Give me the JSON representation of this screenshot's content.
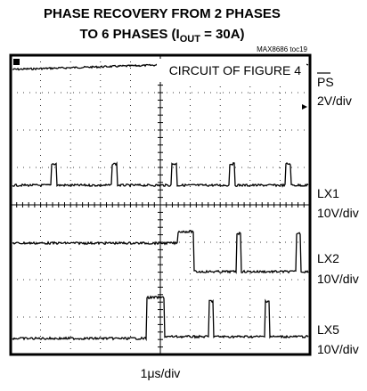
{
  "title": {
    "line1": "PHASE RECOVERY FROM 2 PHASES",
    "line2_prefix": "TO 6 PHASES (I",
    "line2_sub": "OUT",
    "line2_suffix": " = 30A)"
  },
  "tag": "MAX8686 toc19",
  "annotation": "CIRCUIT OF FIGURE 4",
  "channels": [
    {
      "name": "PS",
      "scale": "2V/div"
    },
    {
      "name": "LX1",
      "scale": "10V/div"
    },
    {
      "name": "LX2",
      "scale": "10V/div"
    },
    {
      "name": "LX5",
      "scale": "10V/div"
    }
  ],
  "time_scale": "1μs/div"
}
